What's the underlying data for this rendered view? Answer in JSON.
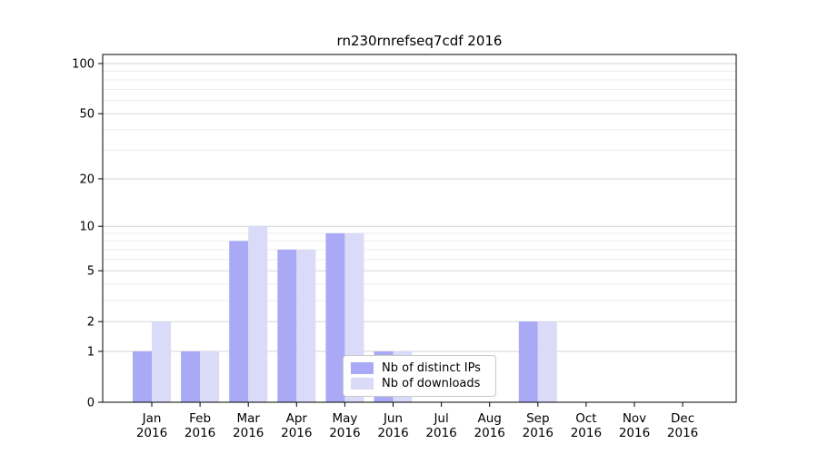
{
  "chart_data": {
    "type": "bar",
    "title": "rn230rnrefseq7cdf 2016",
    "x_months": [
      "Jan",
      "Feb",
      "Mar",
      "Apr",
      "May",
      "Jun",
      "Jul",
      "Aug",
      "Sep",
      "Oct",
      "Nov",
      "Dec"
    ],
    "x_year": "2016",
    "y_ticks": [
      100,
      50,
      20,
      10,
      5,
      2,
      1,
      0
    ],
    "y_minor_ticks": [
      3,
      4,
      6,
      7,
      8,
      9,
      30,
      40,
      60,
      70,
      80,
      90
    ],
    "yscale": "log10(value+1)",
    "ylim": [
      0,
      113
    ],
    "grid": "horizontal",
    "legend_position": "lower-right-inside",
    "colors": {
      "distinct_ips_bar": "#a9a9f6",
      "downloads_bar": "#dadaf9",
      "major_gridline": "#d6d6d6",
      "minor_gridline": "#ededed",
      "spine": "#000000"
    },
    "series": [
      {
        "name": "Nb of distinct IPs",
        "color": "#a9a9f6",
        "values": [
          1,
          1,
          8,
          7,
          9,
          1,
          0,
          0,
          2,
          0,
          0,
          0
        ]
      },
      {
        "name": "Nb of downloads",
        "color": "#dadaf9",
        "values": [
          2,
          1,
          10,
          7,
          9,
          1,
          0,
          0,
          2,
          0,
          0,
          0
        ]
      }
    ]
  }
}
